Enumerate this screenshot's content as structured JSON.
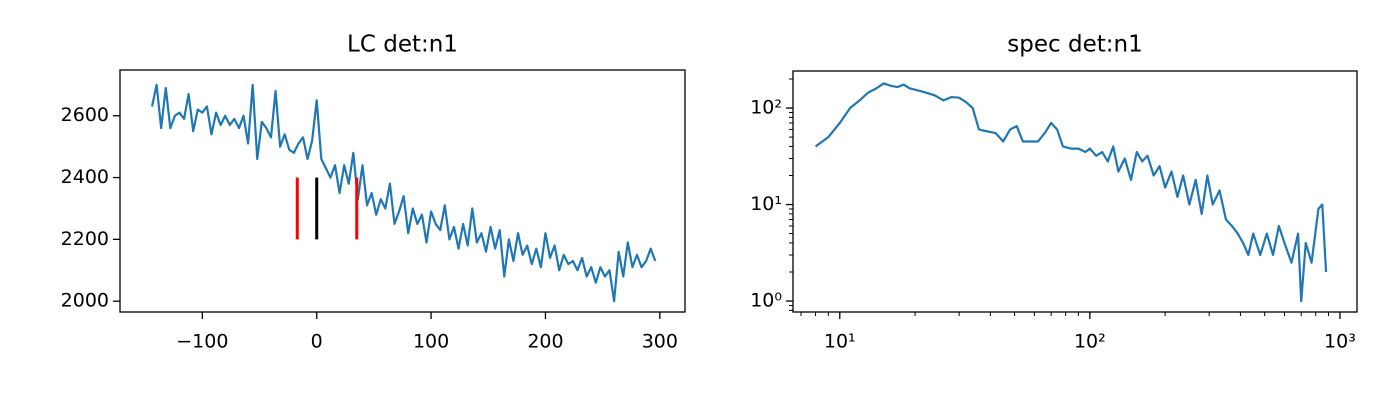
{
  "chart_data": [
    {
      "type": "line",
      "title": "LC det:n1",
      "x": [
        -144,
        -140,
        -136,
        -132,
        -128,
        -124,
        -120,
        -116,
        -112,
        -108,
        -104,
        -100,
        -96,
        -92,
        -88,
        -84,
        -80,
        -76,
        -72,
        -68,
        -64,
        -60,
        -56,
        -52,
        -48,
        -44,
        -40,
        -36,
        -32,
        -28,
        -24,
        -20,
        -16,
        -12,
        -8,
        -4,
        0,
        4,
        8,
        12,
        16,
        20,
        24,
        28,
        32,
        36,
        40,
        44,
        48,
        52,
        56,
        60,
        64,
        68,
        72,
        76,
        80,
        84,
        88,
        92,
        96,
        100,
        104,
        108,
        112,
        116,
        120,
        124,
        128,
        132,
        136,
        140,
        144,
        148,
        152,
        156,
        160,
        164,
        168,
        172,
        176,
        180,
        184,
        188,
        192,
        196,
        200,
        204,
        208,
        212,
        216,
        220,
        224,
        228,
        232,
        236,
        240,
        244,
        248,
        252,
        256,
        260,
        264,
        268,
        272,
        276,
        280,
        284,
        288,
        292,
        296
      ],
      "series": [
        {
          "color": "#1f77b4",
          "values": [
            2630,
            2700,
            2560,
            2690,
            2560,
            2600,
            2610,
            2590,
            2670,
            2550,
            2620,
            2610,
            2630,
            2540,
            2610,
            2570,
            2600,
            2570,
            2590,
            2560,
            2600,
            2510,
            2700,
            2460,
            2580,
            2560,
            2530,
            2680,
            2500,
            2540,
            2490,
            2480,
            2510,
            2530,
            2460,
            2520,
            2650,
            2460,
            2430,
            2400,
            2440,
            2350,
            2440,
            2380,
            2480,
            2330,
            2440,
            2310,
            2350,
            2280,
            2330,
            2300,
            2380,
            2250,
            2290,
            2340,
            2220,
            2300,
            2250,
            2280,
            2190,
            2290,
            2250,
            2230,
            2310,
            2200,
            2240,
            2170,
            2250,
            2180,
            2300,
            2190,
            2220,
            2160,
            2240,
            2170,
            2230,
            2080,
            2200,
            2130,
            2220,
            2150,
            2180,
            2120,
            2170,
            2110,
            2220,
            2140,
            2180,
            2100,
            2150,
            2120,
            2130,
            2100,
            2140,
            2080,
            2110,
            2060,
            2110,
            2080,
            2100,
            2000,
            2160,
            2080,
            2190,
            2110,
            2150,
            2110,
            2130,
            2170,
            2130
          ]
        }
      ],
      "vlines": [
        {
          "x": -17,
          "ymin": 2200,
          "ymax": 2400,
          "color": "#ff0000"
        },
        {
          "x": 0,
          "ymin": 2200,
          "ymax": 2400,
          "color": "#000000"
        },
        {
          "x": 35,
          "ymin": 2200,
          "ymax": 2400,
          "color": "#ff0000"
        }
      ],
      "xlim": [
        -172,
        322
      ],
      "ylim": [
        1965,
        2748
      ],
      "xticks": [
        {
          "value": -100,
          "label": "−100"
        },
        0,
        100,
        200,
        300
      ],
      "yticks": [
        2000,
        2200,
        2400,
        2600
      ]
    },
    {
      "type": "line",
      "title": "spec det:n1",
      "log": true,
      "x": [
        8,
        9,
        10,
        11,
        12,
        13,
        14,
        15,
        16,
        17,
        18,
        19,
        20,
        22,
        24,
        26,
        28,
        30,
        32,
        34,
        36,
        38,
        42,
        45,
        48,
        51,
        54,
        58,
        62,
        66,
        70,
        74,
        78,
        84,
        90,
        96,
        100,
        106,
        112,
        118,
        124,
        130,
        138,
        146,
        154,
        162,
        170,
        180,
        190,
        200,
        212,
        224,
        236,
        250,
        265,
        280,
        295,
        310,
        330,
        350,
        370,
        390,
        410,
        430,
        450,
        480,
        510,
        540,
        570,
        600,
        640,
        680,
        700,
        730,
        770,
        820,
        850,
        880
      ],
      "series": [
        {
          "color": "#1f77b4",
          "values": [
            40,
            50,
            70,
            100,
            120,
            145,
            160,
            180,
            170,
            165,
            175,
            160,
            155,
            145,
            135,
            120,
            130,
            128,
            115,
            100,
            60,
            58,
            55,
            45,
            60,
            65,
            45,
            45,
            45,
            55,
            70,
            60,
            40,
            38,
            38,
            35,
            38,
            32,
            35,
            28,
            40,
            22,
            30,
            18,
            35,
            28,
            32,
            20,
            25,
            15,
            22,
            12,
            20,
            10,
            18,
            8,
            20,
            10,
            14,
            7,
            6,
            5,
            4,
            3,
            5,
            3,
            5,
            3,
            6,
            4,
            2.5,
            5,
            1,
            4,
            2.5,
            9,
            10,
            2
          ]
        }
      ],
      "xlim": [
        6.5,
        1170
      ],
      "ylim": [
        0.77,
        242
      ],
      "xticks": [
        {
          "value": 10,
          "label": "10¹"
        },
        {
          "value": 100,
          "label": "10²"
        },
        {
          "value": 1000,
          "label": "10³"
        }
      ],
      "yticks": [
        {
          "value": 1,
          "label": "10⁰"
        },
        {
          "value": 10,
          "label": "10¹"
        },
        {
          "value": 100,
          "label": "10²"
        }
      ]
    }
  ]
}
